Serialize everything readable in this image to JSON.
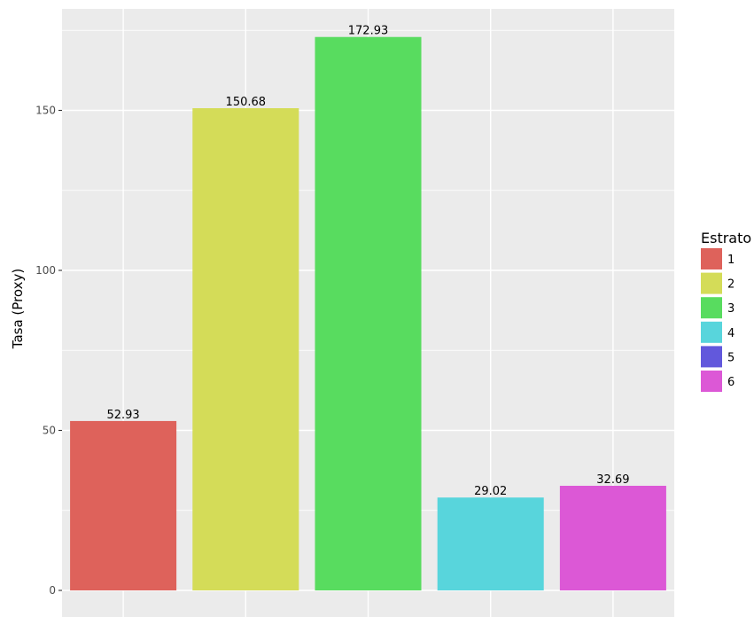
{
  "chart_data": {
    "type": "bar",
    "title": "",
    "xlabel": "",
    "ylabel": "Tasa (Proxy)",
    "ylim": [
      0,
      180
    ],
    "yticks": [
      0,
      50,
      100,
      150
    ],
    "grid": true,
    "legend_position": "right",
    "legend_title": "Estrato",
    "legend": [
      {
        "label": "1",
        "color": "#DE625B"
      },
      {
        "label": "2",
        "color": "#D4DC58"
      },
      {
        "label": "3",
        "color": "#58DC5F"
      },
      {
        "label": "4",
        "color": "#58D5DC"
      },
      {
        "label": "5",
        "color": "#6258DC"
      },
      {
        "label": "6",
        "color": "#DC58D6"
      }
    ],
    "bars": [
      {
        "estrato": "1",
        "value": 52.93,
        "label": "52.93",
        "color": "#DE625B"
      },
      {
        "estrato": "2",
        "value": 150.68,
        "label": "150.68",
        "color": "#D4DC58"
      },
      {
        "estrato": "3",
        "value": 172.93,
        "label": "172.93",
        "color": "#58DC5F"
      },
      {
        "estrato": "4",
        "value": 29.02,
        "label": "29.02",
        "color": "#58D5DC"
      },
      {
        "estrato": "6",
        "value": 32.69,
        "label": "32.69",
        "color": "#DC58D6"
      }
    ]
  }
}
